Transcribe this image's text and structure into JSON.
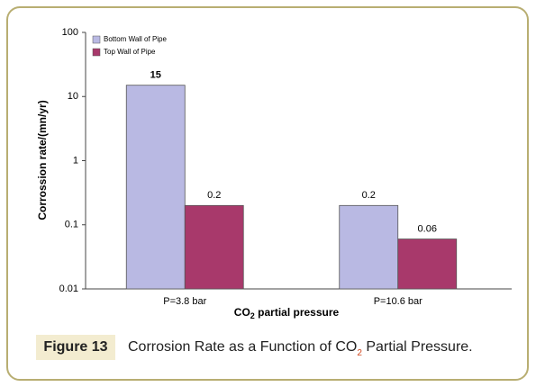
{
  "chart_data": {
    "type": "bar",
    "categories": [
      "P=3.8 bar",
      "P=10.6 bar"
    ],
    "series": [
      {
        "name": "Bottom Wall of Pipe",
        "color": "#b9b9e3",
        "values": [
          15,
          0.2
        ]
      },
      {
        "name": "Top Wall of Pipe",
        "color": "#a8396b",
        "values": [
          0.2,
          0.06
        ]
      }
    ],
    "y_label": "Corrossion rate/(mn/yr)",
    "x_label_parts": [
      "CO",
      "2",
      " partial pressure"
    ],
    "ylim": [
      0.01,
      100
    ],
    "yticks": [
      0.01,
      0.1,
      1,
      10,
      100
    ],
    "log_scale": true,
    "legend": "upper-left"
  },
  "caption": {
    "label": "Figure 13",
    "text_parts": [
      "Corrosion Rate as a Function of CO",
      "2",
      " Partial Pressure."
    ]
  }
}
